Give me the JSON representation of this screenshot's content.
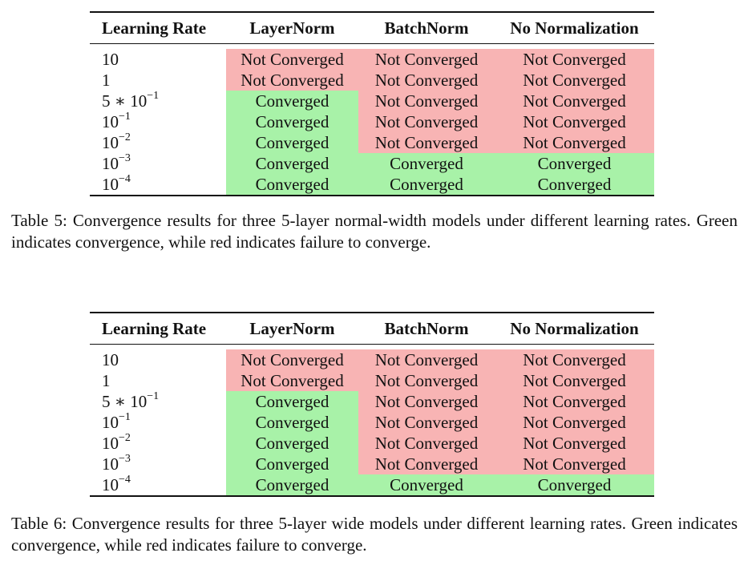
{
  "table5": {
    "headers": [
      "Learning Rate",
      "LayerNorm",
      "BatchNorm",
      "No Normalization"
    ],
    "rows": [
      {
        "lr_base": "10",
        "lr_exp": "",
        "cells": [
          "Not Converged",
          "Not Converged",
          "Not Converged"
        ],
        "status": [
          "not_converged",
          "not_converged",
          "not_converged"
        ]
      },
      {
        "lr_base": "1",
        "lr_exp": "",
        "cells": [
          "Not Converged",
          "Not Converged",
          "Not Converged"
        ],
        "status": [
          "not_converged",
          "not_converged",
          "not_converged"
        ]
      },
      {
        "lr_base": "5 ∗ 10",
        "lr_exp": "−1",
        "cells": [
          "Converged",
          "Not Converged",
          "Not Converged"
        ],
        "status": [
          "converged",
          "not_converged",
          "not_converged"
        ]
      },
      {
        "lr_base": "10",
        "lr_exp": "−1",
        "cells": [
          "Converged",
          "Not Converged",
          "Not Converged"
        ],
        "status": [
          "converged",
          "not_converged",
          "not_converged"
        ]
      },
      {
        "lr_base": "10",
        "lr_exp": "−2",
        "cells": [
          "Converged",
          "Not Converged",
          "Not Converged"
        ],
        "status": [
          "converged",
          "not_converged",
          "not_converged"
        ]
      },
      {
        "lr_base": "10",
        "lr_exp": "−3",
        "cells": [
          "Converged",
          "Converged",
          "Converged"
        ],
        "status": [
          "converged",
          "converged",
          "converged"
        ]
      },
      {
        "lr_base": "10",
        "lr_exp": "−4",
        "cells": [
          "Converged",
          "Converged",
          "Converged"
        ],
        "status": [
          "converged",
          "converged",
          "converged"
        ]
      }
    ],
    "caption": "Table 5: Convergence results for three 5-layer normal-width models under different learning rates. Green indicates convergence, while red indicates failure to converge."
  },
  "table6": {
    "headers": [
      "Learning Rate",
      "LayerNorm",
      "BatchNorm",
      "No Normalization"
    ],
    "rows": [
      {
        "lr_base": "10",
        "lr_exp": "",
        "cells": [
          "Not Converged",
          "Not Converged",
          "Not Converged"
        ],
        "status": [
          "not_converged",
          "not_converged",
          "not_converged"
        ]
      },
      {
        "lr_base": "1",
        "lr_exp": "",
        "cells": [
          "Not Converged",
          "Not Converged",
          "Not Converged"
        ],
        "status": [
          "not_converged",
          "not_converged",
          "not_converged"
        ]
      },
      {
        "lr_base": "5 ∗ 10",
        "lr_exp": "−1",
        "cells": [
          "Converged",
          "Not Converged",
          "Not Converged"
        ],
        "status": [
          "converged",
          "not_converged",
          "not_converged"
        ]
      },
      {
        "lr_base": "10",
        "lr_exp": "−1",
        "cells": [
          "Converged",
          "Not Converged",
          "Not Converged"
        ],
        "status": [
          "converged",
          "not_converged",
          "not_converged"
        ]
      },
      {
        "lr_base": "10",
        "lr_exp": "−2",
        "cells": [
          "Converged",
          "Not Converged",
          "Not Converged"
        ],
        "status": [
          "converged",
          "not_converged",
          "not_converged"
        ]
      },
      {
        "lr_base": "10",
        "lr_exp": "−3",
        "cells": [
          "Converged",
          "Not Converged",
          "Not Converged"
        ],
        "status": [
          "converged",
          "not_converged",
          "not_converged"
        ]
      },
      {
        "lr_base": "10",
        "lr_exp": "−4",
        "cells": [
          "Converged",
          "Converged",
          "Converged"
        ],
        "status": [
          "converged",
          "converged",
          "converged"
        ]
      }
    ],
    "caption": "Table 6: Convergence results for three 5-layer wide models under different learning rates. Green indicates convergence, while red indicates failure to converge."
  },
  "colors": {
    "converged": "#a8f2a8",
    "not_converged": "#f8b4b4"
  }
}
